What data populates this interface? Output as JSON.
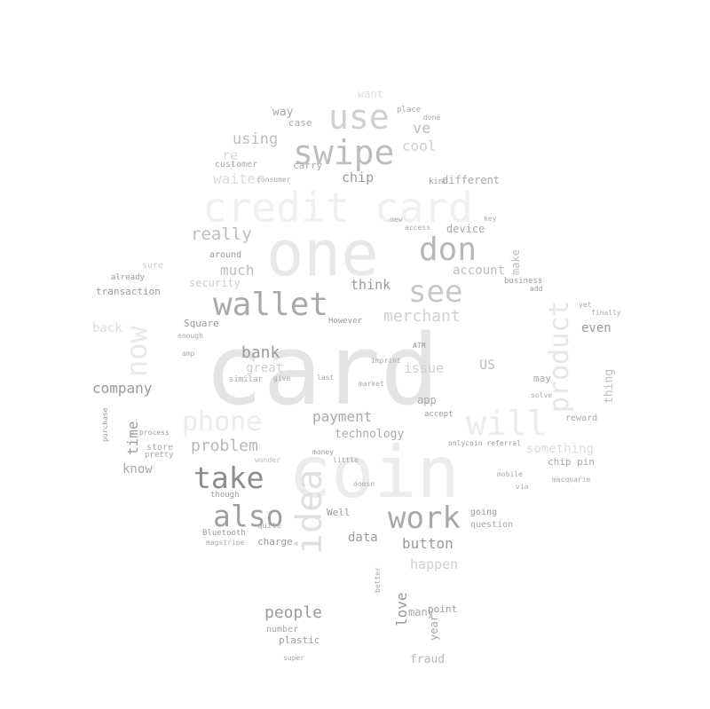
{
  "words": [
    {
      "text": "card",
      "weight": 1.0,
      "shade": "#e4e4e4"
    },
    {
      "text": "coin",
      "weight": 0.72,
      "shade": "#ececec"
    },
    {
      "text": "one",
      "weight": 0.62,
      "shade": "#e8e8e8"
    },
    {
      "text": "credit card",
      "weight": 0.45,
      "shade": "#f0f0f0"
    },
    {
      "text": "swipe",
      "weight": 0.42,
      "shade": "#bdbdbd"
    },
    {
      "text": "use",
      "weight": 0.45,
      "shade": "#d0d0d0"
    },
    {
      "text": "wallet",
      "weight": 0.38,
      "shade": "#a9a9a9"
    },
    {
      "text": "don",
      "weight": 0.36,
      "shade": "#b8b8b8"
    },
    {
      "text": "see",
      "weight": 0.36,
      "shade": "#c8c8c8"
    },
    {
      "text": "take",
      "weight": 0.34,
      "shade": "#8c8c8c"
    },
    {
      "text": "also",
      "weight": 0.34,
      "shade": "#a0a0a0"
    },
    {
      "text": "work",
      "weight": 0.34,
      "shade": "#a9a9a9"
    },
    {
      "text": "idea",
      "weight": 0.36,
      "shade": "#e0e0e0"
    },
    {
      "text": "now",
      "weight": 0.3,
      "shade": "#e8e8e8"
    },
    {
      "text": "will",
      "weight": 0.36,
      "shade": "#ececec"
    },
    {
      "text": "phone",
      "weight": 0.26,
      "shade": "#ececec"
    },
    {
      "text": "product",
      "weight": 0.28,
      "shade": "#e6e6e6"
    },
    {
      "text": "really",
      "weight": 0.18,
      "shade": "#bdbdbd"
    },
    {
      "text": "much",
      "weight": 0.14,
      "shade": "#bdbdbd"
    },
    {
      "text": "security",
      "weight": 0.11,
      "shade": "#cfcfcf"
    },
    {
      "text": "transaction",
      "weight": 0.09,
      "shade": "#9a9a9a"
    },
    {
      "text": "account",
      "weight": 0.13,
      "shade": "#bdbdbd"
    },
    {
      "text": "merchant",
      "weight": 0.16,
      "shade": "#d0d0d0"
    },
    {
      "text": "think",
      "weight": 0.13,
      "shade": "#9a9a9a"
    },
    {
      "text": "device",
      "weight": 0.11,
      "shade": "#a9a9a9"
    },
    {
      "text": "make",
      "weight": 0.11,
      "shade": "#bdbdbd"
    },
    {
      "text": "chip",
      "weight": 0.14,
      "shade": "#9a9a9a"
    },
    {
      "text": "using",
      "weight": 0.15,
      "shade": "#bdbdbd"
    },
    {
      "text": "waiter",
      "weight": 0.14,
      "shade": "#dcdcdc"
    },
    {
      "text": "re",
      "weight": 0.13,
      "shade": "#dcdcdc"
    },
    {
      "text": "way",
      "weight": 0.12,
      "shade": "#a9a9a9"
    },
    {
      "text": "case",
      "weight": 0.09,
      "shade": "#a9a9a9"
    },
    {
      "text": "ve",
      "weight": 0.14,
      "shade": "#bdbdbd"
    },
    {
      "text": "cool",
      "weight": 0.14,
      "shade": "#cfcfcf"
    },
    {
      "text": "want",
      "weight": 0.11,
      "shade": "#e0e0e0"
    },
    {
      "text": "carry",
      "weight": 0.09,
      "shade": "#a9a9a9"
    },
    {
      "text": "customer",
      "weight": 0.08,
      "shade": "#a9a9a9"
    },
    {
      "text": "kind",
      "weight": 0.07,
      "shade": "#9a9a9a"
    },
    {
      "text": "different",
      "weight": 0.1,
      "shade": "#a9a9a9"
    },
    {
      "text": "bank",
      "weight": 0.16,
      "shade": "#9a9a9a"
    },
    {
      "text": "great",
      "weight": 0.12,
      "shade": "#cfcfcf"
    },
    {
      "text": "company",
      "weight": 0.14,
      "shade": "#9a9a9a"
    },
    {
      "text": "time",
      "weight": 0.14,
      "shade": "#9a9a9a"
    },
    {
      "text": "problem",
      "weight": 0.15,
      "shade": "#b8b8b8"
    },
    {
      "text": "payment",
      "weight": 0.14,
      "shade": "#a9a9a9"
    },
    {
      "text": "technology",
      "weight": 0.11,
      "shade": "#a9a9a9"
    },
    {
      "text": "issue",
      "weight": 0.13,
      "shade": "#d0d0d0"
    },
    {
      "text": "app",
      "weight": 0.1,
      "shade": "#a9a9a9"
    },
    {
      "text": "US",
      "weight": 0.12,
      "shade": "#bdbdbd"
    },
    {
      "text": "may",
      "weight": 0.09,
      "shade": "#a9a9a9"
    },
    {
      "text": "even",
      "weight": 0.12,
      "shade": "#9a9a9a"
    },
    {
      "text": "thing",
      "weight": 0.12,
      "shade": "#bdbdbd"
    },
    {
      "text": "something",
      "weight": 0.12,
      "shade": "#dcdcdc"
    },
    {
      "text": "reward",
      "weight": 0.08,
      "shade": "#a9a9a9"
    },
    {
      "text": "chip pin",
      "weight": 0.09,
      "shade": "#a9a9a9"
    },
    {
      "text": "know",
      "weight": 0.11,
      "shade": "#a9a9a9"
    },
    {
      "text": "store",
      "weight": 0.08,
      "shade": "#a9a9a9"
    },
    {
      "text": "button",
      "weight": 0.14,
      "shade": "#9a9a9a"
    },
    {
      "text": "happen",
      "weight": 0.13,
      "shade": "#cfcfcf"
    },
    {
      "text": "data",
      "weight": 0.12,
      "shade": "#9a9a9a"
    },
    {
      "text": "Well",
      "weight": 0.09,
      "shade": "#9a9a9a"
    },
    {
      "text": "going",
      "weight": 0.08,
      "shade": "#9a9a9a"
    },
    {
      "text": "question",
      "weight": 0.08,
      "shade": "#a9a9a9"
    },
    {
      "text": "charge",
      "weight": 0.08,
      "shade": "#9a9a9a"
    },
    {
      "text": "people",
      "weight": 0.15,
      "shade": "#9a9a9a"
    },
    {
      "text": "love",
      "weight": 0.13,
      "shade": "#9a9a9a"
    },
    {
      "text": "year",
      "weight": 0.11,
      "shade": "#a9a9a9"
    },
    {
      "text": "many",
      "weight": 0.09,
      "shade": "#a9a9a9"
    },
    {
      "text": "point",
      "weight": 0.09,
      "shade": "#9a9a9a"
    },
    {
      "text": "number",
      "weight": 0.07,
      "shade": "#a9a9a9"
    },
    {
      "text": "plastic",
      "weight": 0.08,
      "shade": "#9a9a9a"
    },
    {
      "text": "fraud",
      "weight": 0.11,
      "shade": "#b8b8b8"
    },
    {
      "text": "Square",
      "weight": 0.07,
      "shade": "#9a9a9a"
    },
    {
      "text": "around",
      "weight": 0.07,
      "shade": "#9a9a9a"
    },
    {
      "text": "already",
      "weight": 0.06,
      "shade": "#9a9a9a"
    },
    {
      "text": "back",
      "weight": 0.1,
      "shade": "#dcdcdc"
    },
    {
      "text": "However",
      "weight": 0.06,
      "shade": "#9a9a9a"
    },
    {
      "text": "similar",
      "weight": 0.07,
      "shade": "#a9a9a9"
    },
    {
      "text": "Bluetooth",
      "weight": 0.06,
      "shade": "#9a9a9a"
    },
    {
      "text": "purchase",
      "weight": 0.06,
      "shade": "#9a9a9a"
    },
    {
      "text": "process",
      "weight": 0.05,
      "shade": "#9a9a9a"
    },
    {
      "text": "pretty",
      "weight": 0.06,
      "shade": "#a9a9a9"
    },
    {
      "text": "onlycoin referral",
      "weight": 0.05,
      "shade": "#9a9a9a"
    },
    {
      "text": "macquarie",
      "weight": 0.05,
      "shade": "#a9a9a9"
    },
    {
      "text": "accept",
      "weight": 0.06,
      "shade": "#9a9a9a"
    },
    {
      "text": "business",
      "weight": 0.06,
      "shade": "#9a9a9a"
    },
    {
      "text": "add",
      "weight": 0.05,
      "shade": "#9a9a9a"
    },
    {
      "text": "mobile",
      "weight": 0.05,
      "shade": "#a9a9a9"
    },
    {
      "text": "money",
      "weight": 0.06,
      "shade": "#9a9a9a"
    },
    {
      "text": "though",
      "weight": 0.06,
      "shade": "#9a9a9a"
    },
    {
      "text": "quite",
      "weight": 0.06,
      "shade": "#a9a9a9"
    },
    {
      "text": "magstripe",
      "weight": 0.05,
      "shade": "#a9a9a9"
    },
    {
      "text": "super",
      "weight": 0.05,
      "shade": "#a9a9a9"
    },
    {
      "text": "ATM",
      "weight": 0.05,
      "shade": "#9a9a9a"
    },
    {
      "text": "sure",
      "weight": 0.06,
      "shade": "#cfcfcf"
    },
    {
      "text": "new",
      "weight": 0.05,
      "shade": "#a9a9a9"
    },
    {
      "text": "access",
      "weight": 0.05,
      "shade": "#a9a9a9"
    },
    {
      "text": "key",
      "weight": 0.05,
      "shade": "#a9a9a9"
    },
    {
      "text": "place",
      "weight": 0.05,
      "shade": "#a9a9a9"
    },
    {
      "text": "done",
      "weight": 0.05,
      "shade": "#a9a9a9"
    },
    {
      "text": "consumer",
      "weight": 0.05,
      "shade": "#a9a9a9"
    },
    {
      "text": "amp",
      "weight": 0.05,
      "shade": "#a9a9a9"
    },
    {
      "text": "enough",
      "weight": 0.05,
      "shade": "#a9a9a9"
    },
    {
      "text": "give",
      "weight": 0.05,
      "shade": "#a9a9a9"
    },
    {
      "text": "last",
      "weight": 0.05,
      "shade": "#a9a9a9"
    },
    {
      "text": "market",
      "weight": 0.05,
      "shade": "#a9a9a9"
    },
    {
      "text": "imprint",
      "weight": 0.05,
      "shade": "#a9a9a9"
    },
    {
      "text": "little",
      "weight": 0.05,
      "shade": "#a9a9a9"
    },
    {
      "text": "wonder",
      "weight": 0.05,
      "shade": "#bdbdbd"
    },
    {
      "text": "doesn",
      "weight": 0.05,
      "shade": "#a9a9a9"
    },
    {
      "text": "better",
      "weight": 0.05,
      "shade": "#a9a9a9"
    },
    {
      "text": "via",
      "weight": 0.05,
      "shade": "#a9a9a9"
    },
    {
      "text": "yet",
      "weight": 0.05,
      "shade": "#a9a9a9"
    },
    {
      "text": "finally",
      "weight": 0.05,
      "shade": "#a9a9a9"
    },
    {
      "text": "solve",
      "weight": 0.05,
      "shade": "#a9a9a9"
    }
  ]
}
